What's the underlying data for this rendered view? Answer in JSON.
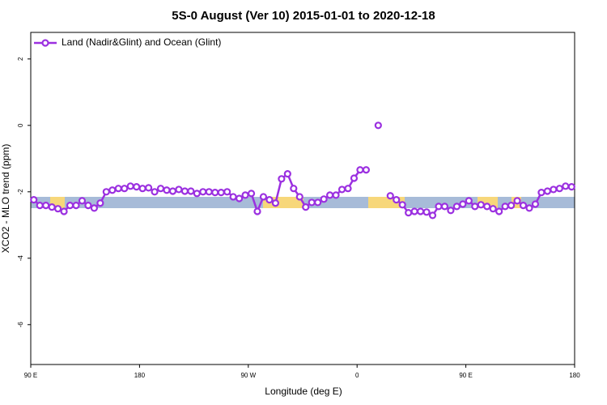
{
  "chart_data": {
    "type": "line",
    "title": "5S-0 August (Ver 10)   2015-01-01 to 2020-12-18",
    "x_label": "Longitude (deg E)",
    "y_label": "XCO2 - MLO trend (ppm)",
    "legend": "top-left",
    "x": [
      92.5,
      97.5,
      102.5,
      107.5,
      112.5,
      117.5,
      122.5,
      127.5,
      132.5,
      137.5,
      142.5,
      147.5,
      152.5,
      157.5,
      162.5,
      167.5,
      172.5,
      177.5,
      182.5,
      187.5,
      192.5,
      197.5,
      202.5,
      207.5,
      212.5,
      217.5,
      222.5,
      227.5,
      232.5,
      237.5,
      242.5,
      247.5,
      252.5,
      257.5,
      262.5,
      267.5,
      272.5,
      277.5,
      282.5,
      287.5,
      292.5,
      297.5,
      302.5,
      307.5,
      312.5,
      317.5,
      322.5,
      327.5,
      332.5,
      337.5,
      342.5,
      347.5,
      352.5,
      357.5,
      362.5,
      367.5,
      372.5,
      377.5,
      382.5,
      387.5,
      392.5,
      397.5,
      402.5,
      407.5,
      412.5,
      417.5,
      422.5,
      427.5,
      432.5,
      437.5,
      442.5,
      447.5,
      452.5,
      457.5,
      462.5,
      467.5,
      472.5,
      477.5,
      482.5,
      487.5,
      492.5,
      497.5,
      502.5,
      507.5,
      512.5,
      517.5,
      522.5,
      527.5,
      532.5,
      537.5
    ],
    "series": [
      {
        "name": "Land (Nadir&Glint) and Ocean (Glint)",
        "color": "#9b30e0",
        "values": [
          -2.24,
          -2.41,
          -2.41,
          -2.46,
          -2.51,
          -2.59,
          -2.41,
          -2.41,
          -2.27,
          -2.41,
          -2.49,
          -2.34,
          -2.0,
          -1.95,
          -1.9,
          -1.9,
          -1.83,
          -1.85,
          -1.9,
          -1.88,
          -2.0,
          -1.9,
          -1.95,
          -1.98,
          -1.93,
          -1.98,
          -1.98,
          -2.05,
          -2.0,
          -2.0,
          -2.02,
          -2.02,
          -2.0,
          -2.15,
          -2.2,
          -2.1,
          -2.05,
          -2.59,
          -2.15,
          -2.24,
          -2.34,
          -1.61,
          -1.46,
          -1.9,
          -2.15,
          -2.46,
          -2.32,
          -2.32,
          -2.22,
          -2.1,
          -2.1,
          -1.93,
          -1.9,
          -1.59,
          -1.34,
          -1.34,
          null,
          0,
          null,
          -2.12,
          -2.24,
          -2.39,
          -2.63,
          -2.59,
          -2.59,
          -2.61,
          -2.71,
          -2.44,
          -2.44,
          -2.56,
          -2.44,
          -2.37,
          -2.27,
          -2.44,
          -2.39,
          -2.44,
          -2.51,
          -2.59,
          -2.44,
          -2.41,
          -2.27,
          -2.41,
          -2.49,
          -2.37,
          -2.02,
          -1.98,
          -1.93,
          -1.9,
          -1.83,
          -1.85
        ]
      }
    ],
    "xlim": [
      90,
      540
    ],
    "xticks": [
      {
        "value": 90,
        "label": "90 E"
      },
      {
        "value": 180,
        "label": "180"
      },
      {
        "value": 270,
        "label": "90 W"
      },
      {
        "value": 360,
        "label": "0"
      },
      {
        "value": 450,
        "label": "90 E"
      },
      {
        "value": 540,
        "label": "180"
      }
    ],
    "ylim": [
      -7.2,
      2.8
    ],
    "yticks": [
      2,
      0,
      -2,
      -4,
      -6
    ]
  }
}
